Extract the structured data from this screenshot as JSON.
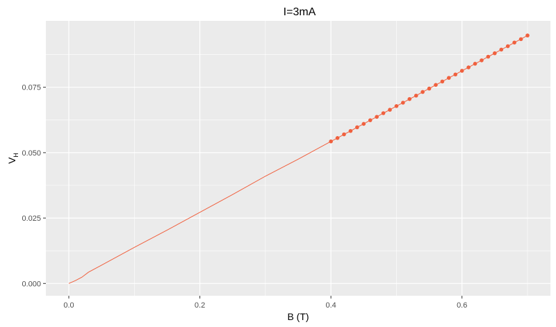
{
  "chart_data": {
    "type": "line",
    "title": "I=3mA",
    "xlabel": "B (T)",
    "ylabel": "V",
    "ylabel_subscript": "H",
    "xlim": [
      -0.035,
      0.735
    ],
    "ylim": [
      -0.0047,
      0.1004
    ],
    "x_ticks": [
      0.0,
      0.2,
      0.4,
      0.6
    ],
    "x_tick_labels": [
      "0.0",
      "0.2",
      "0.4",
      "0.6"
    ],
    "y_ticks": [
      0.0,
      0.025,
      0.05,
      0.075
    ],
    "y_tick_labels": [
      "0.000",
      "0.025",
      "0.050",
      "0.075"
    ],
    "grid": true,
    "colors": {
      "series": "#F0603E",
      "panel": "#EBEBEB",
      "grid": "#FFFFFF"
    },
    "series": [
      {
        "style": "line",
        "x": [
          0.0,
          0.01,
          0.02,
          0.03,
          0.05,
          0.1,
          0.15,
          0.2,
          0.25,
          0.3,
          0.35,
          0.4
        ],
        "y": [
          0.0,
          0.0011,
          0.0024,
          0.0043,
          0.007,
          0.0138,
          0.0204,
          0.0272,
          0.034,
          0.041,
          0.0475,
          0.0543
        ]
      },
      {
        "style": "line+points",
        "x": [
          0.4,
          0.41,
          0.42,
          0.43,
          0.44,
          0.45,
          0.46,
          0.47,
          0.48,
          0.49,
          0.5,
          0.51,
          0.52,
          0.53,
          0.54,
          0.55,
          0.56,
          0.57,
          0.58,
          0.59,
          0.6,
          0.61,
          0.62,
          0.63,
          0.64,
          0.65,
          0.66,
          0.67,
          0.68,
          0.69,
          0.7
        ],
        "y": [
          0.0543,
          0.0556,
          0.057,
          0.0583,
          0.0597,
          0.061,
          0.0624,
          0.0637,
          0.0651,
          0.0664,
          0.0678,
          0.0691,
          0.0705,
          0.0718,
          0.0732,
          0.0745,
          0.0759,
          0.0772,
          0.0786,
          0.0799,
          0.0813,
          0.0826,
          0.084,
          0.0853,
          0.0867,
          0.088,
          0.0894,
          0.0907,
          0.0921,
          0.0934,
          0.0948
        ]
      }
    ]
  }
}
